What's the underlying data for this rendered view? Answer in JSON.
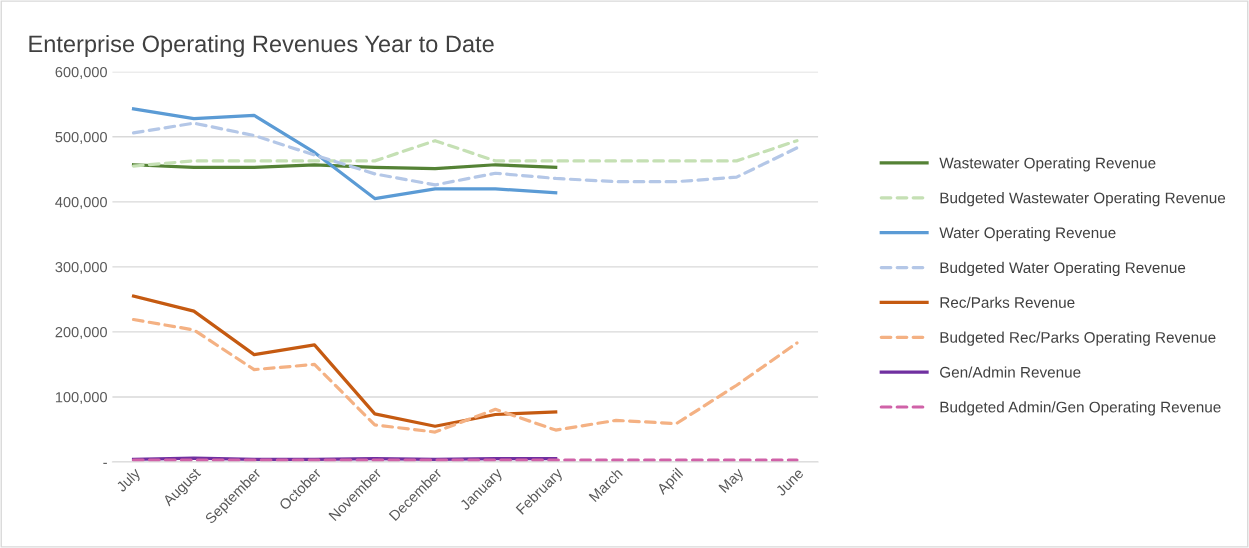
{
  "chart_data": {
    "type": "line",
    "title": "Enterprise Operating Revenues Year to Date",
    "categories": [
      "July",
      "August",
      "September",
      "October",
      "November",
      "December",
      "January",
      "February",
      "March",
      "April",
      "May",
      "June"
    ],
    "series": [
      {
        "name": "Wastewater Operating Revenue",
        "color": "#548235",
        "line_style": "solid",
        "values": [
          457000,
          453000,
          453000,
          457000,
          453000,
          451000,
          457000,
          453000,
          null,
          null,
          null,
          null
        ]
      },
      {
        "name": "Budgeted Wastewater Operating Revenue",
        "color": "#c5e0b4",
        "line_style": "dashed",
        "values": [
          455000,
          463000,
          463000,
          463000,
          463000,
          494000,
          463000,
          463000,
          463000,
          463000,
          463000,
          494000
        ]
      },
      {
        "name": "Water Operating Revenue",
        "color": "#5b9bd5",
        "line_style": "solid",
        "values": [
          543000,
          528000,
          533000,
          476000,
          405000,
          420000,
          420000,
          414000,
          null,
          null,
          null,
          null
        ]
      },
      {
        "name": "Budgeted Water Operating Revenue",
        "color": "#b4c7e7",
        "line_style": "dashed",
        "values": [
          506000,
          521000,
          502000,
          472000,
          443000,
          426000,
          444000,
          436000,
          431000,
          431000,
          438000,
          483000
        ]
      },
      {
        "name": "Rec/Parks Revenue",
        "color": "#c55a11",
        "line_style": "solid",
        "values": [
          255000,
          232000,
          165000,
          180000,
          74000,
          55000,
          73000,
          77000,
          null,
          null,
          null,
          null
        ]
      },
      {
        "name": "Budgeted Rec/Parks Operating Revenue",
        "color": "#f4b183",
        "line_style": "dashed",
        "values": [
          219000,
          203000,
          142000,
          150000,
          57000,
          46000,
          81000,
          49000,
          64000,
          59000,
          118000,
          183000
        ]
      },
      {
        "name": "Gen/Admin Revenue",
        "color": "#7030a0",
        "line_style": "solid",
        "values": [
          4000,
          6000,
          4000,
          4000,
          5000,
          4000,
          5000,
          5000,
          null,
          null,
          null,
          null
        ]
      },
      {
        "name": "Budgeted Admin/Gen Operating Revenue",
        "color": "#d062a8",
        "line_style": "dashed",
        "values": [
          3000,
          3000,
          3000,
          3000,
          3000,
          3000,
          3000,
          3000,
          3000,
          3000,
          3000,
          3000
        ]
      }
    ],
    "ylim": [
      0,
      600000
    ],
    "yticks": [
      {
        "value": 0,
        "label": "-"
      },
      {
        "value": 100000,
        "label": "100,000"
      },
      {
        "value": 200000,
        "label": "200,000"
      },
      {
        "value": 300000,
        "label": "300,000"
      },
      {
        "value": 400000,
        "label": "400,000"
      },
      {
        "value": 500000,
        "label": "500,000"
      },
      {
        "value": 600000,
        "label": "600,000"
      }
    ],
    "grid": "y",
    "legend": "right",
    "marker": "none"
  }
}
